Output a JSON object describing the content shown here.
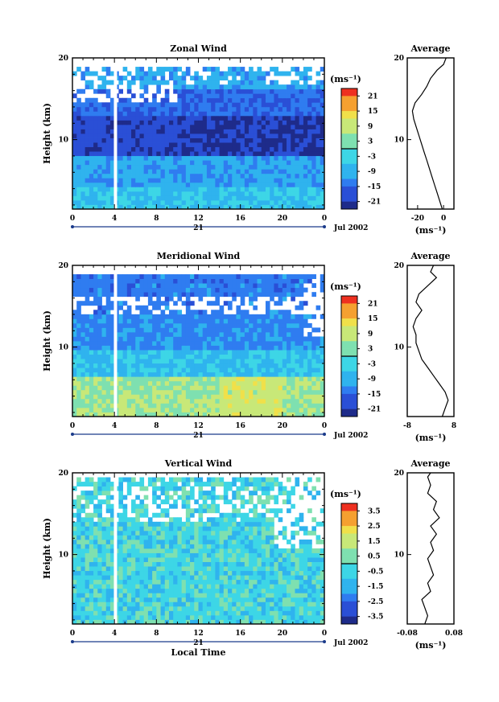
{
  "figure": {
    "x_label": "Local Time",
    "date_label": "Jul 2002",
    "day_label": "21",
    "y_label": "Height (km)",
    "y_ticks": [
      10,
      20
    ],
    "x_ticks": [
      "0",
      "4",
      "8",
      "12",
      "16",
      "20",
      "0"
    ],
    "avg_title": "Average"
  },
  "chart_data": [
    {
      "type": "heatmap",
      "title": "Zonal Wind",
      "unit": "(ms⁻¹)",
      "x_range_hours": [
        0,
        24
      ],
      "y_range_km": [
        1.5,
        20
      ],
      "colorbar_ticks": [
        "21",
        "15",
        "9",
        "3",
        "-3",
        "-9",
        "-15",
        "-21"
      ],
      "colorbar_range": [
        -24,
        24
      ],
      "average": {
        "title": "Average",
        "x_ticks": [
          "-20",
          "0"
        ],
        "x_range": [
          -28,
          8
        ],
        "unit": "(ms⁻¹)",
        "profile": [
          [
            1.5,
            -1
          ],
          [
            2.5,
            -3
          ],
          [
            3.5,
            -5
          ],
          [
            4.5,
            -7
          ],
          [
            5.5,
            -9
          ],
          [
            6.5,
            -11
          ],
          [
            7.5,
            -13
          ],
          [
            8.5,
            -15
          ],
          [
            9.5,
            -17
          ],
          [
            10.5,
            -19
          ],
          [
            11.5,
            -21
          ],
          [
            12.5,
            -23
          ],
          [
            13.5,
            -24
          ],
          [
            14.5,
            -22
          ],
          [
            15.5,
            -17
          ],
          [
            16.5,
            -13
          ],
          [
            17.5,
            -10
          ],
          [
            18.5,
            -5
          ],
          [
            19.2,
            0
          ],
          [
            20,
            2
          ]
        ]
      }
    },
    {
      "type": "heatmap",
      "title": "Meridional Wind",
      "unit": "(ms⁻¹)",
      "x_range_hours": [
        0,
        24
      ],
      "y_range_km": [
        1.5,
        20
      ],
      "colorbar_ticks": [
        "21",
        "15",
        "9",
        "3",
        "-3",
        "-9",
        "-15",
        "-21"
      ],
      "colorbar_range": [
        -24,
        24
      ],
      "average": {
        "title": "Average",
        "x_ticks": [
          "-8",
          "8"
        ],
        "x_range": [
          -8,
          8
        ],
        "unit": "(ms⁻¹)",
        "profile": [
          [
            1.5,
            4
          ],
          [
            2.5,
            5
          ],
          [
            3.5,
            6
          ],
          [
            4.5,
            5
          ],
          [
            5.5,
            3
          ],
          [
            6.5,
            1
          ],
          [
            7.5,
            -1
          ],
          [
            8.5,
            -3
          ],
          [
            9.5,
            -4
          ],
          [
            10.5,
            -5
          ],
          [
            11.5,
            -5
          ],
          [
            12.5,
            -6
          ],
          [
            13.5,
            -5
          ],
          [
            14.5,
            -3
          ],
          [
            15.5,
            -5
          ],
          [
            16.5,
            -4
          ],
          [
            17.5,
            -1
          ],
          [
            18.5,
            2
          ],
          [
            19.2,
            0
          ],
          [
            20,
            1
          ]
        ]
      }
    },
    {
      "type": "heatmap",
      "title": "Vertical Wind",
      "unit": "(ms⁻¹)",
      "x_range_hours": [
        0,
        24
      ],
      "y_range_km": [
        1.5,
        20
      ],
      "colorbar_ticks": [
        "3.5",
        "2.5",
        "1.5",
        "0.5",
        "-0.5",
        "-1.5",
        "-2.5",
        "-3.5"
      ],
      "colorbar_range": [
        -4,
        4
      ],
      "average": {
        "title": "Average",
        "x_ticks": [
          "-0.08",
          "0.08"
        ],
        "x_range": [
          -0.08,
          0.08
        ],
        "unit": "(ms⁻¹)",
        "profile": [
          [
            1.5,
            -0.02
          ],
          [
            2.5,
            -0.01
          ],
          [
            3.5,
            -0.02
          ],
          [
            4.5,
            -0.03
          ],
          [
            5.5,
            0.0
          ],
          [
            6.5,
            -0.01
          ],
          [
            7.5,
            0.01
          ],
          [
            8.5,
            0.0
          ],
          [
            9.5,
            -0.01
          ],
          [
            10.5,
            0.01
          ],
          [
            11.5,
            0.0
          ],
          [
            12.5,
            0.02
          ],
          [
            13.5,
            0.0
          ],
          [
            14.5,
            0.03
          ],
          [
            15.5,
            0.01
          ],
          [
            16.5,
            0.02
          ],
          [
            17.5,
            -0.01
          ],
          [
            18.5,
            0.0
          ],
          [
            19.5,
            -0.01
          ],
          [
            20,
            0.0
          ]
        ]
      }
    }
  ]
}
